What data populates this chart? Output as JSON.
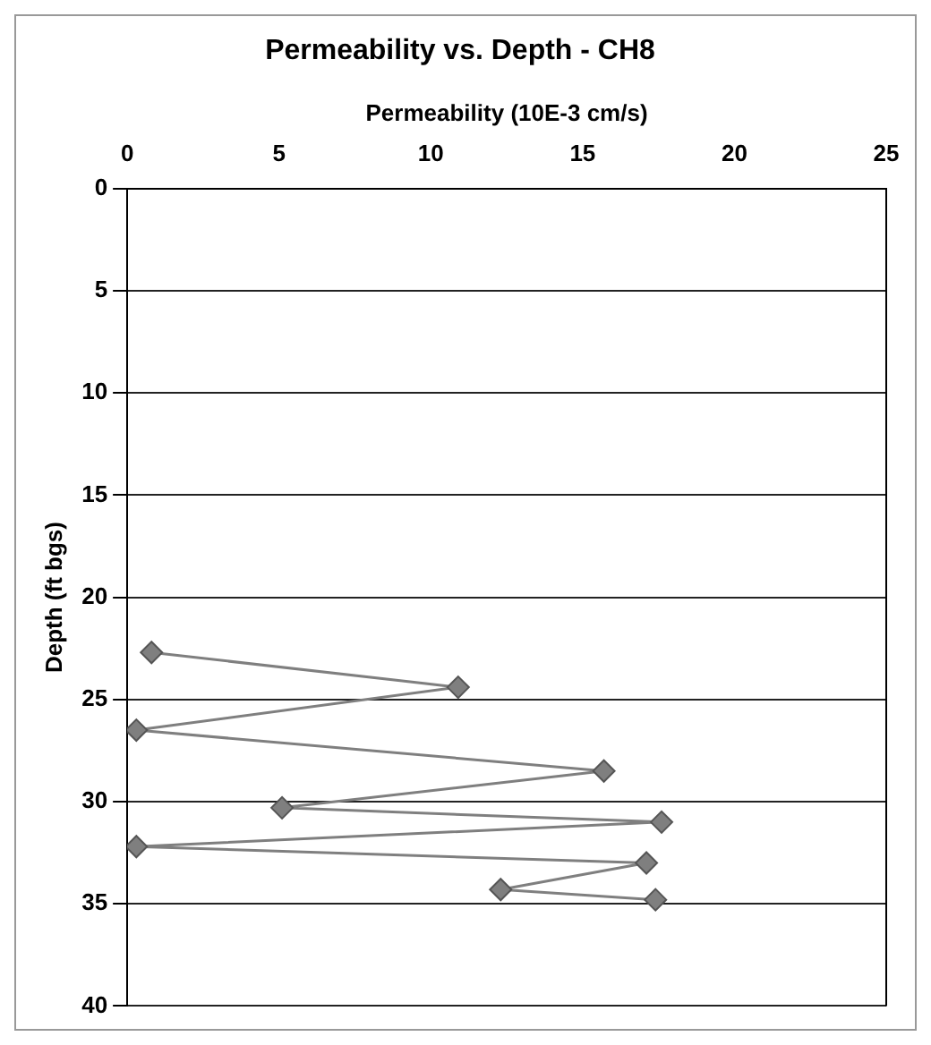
{
  "chart_data": {
    "type": "line",
    "title": "Permeability vs. Depth - CH8",
    "xlabel": "Permeability (10E-3 cm/s)",
    "ylabel": "Depth (ft bgs)",
    "xlim": [
      0,
      25
    ],
    "xticks": [
      0,
      5,
      10,
      15,
      20,
      25
    ],
    "ylim": [
      40,
      0
    ],
    "yticks": [
      0,
      5,
      10,
      15,
      20,
      25,
      30,
      35,
      40
    ],
    "grid": "y",
    "legend": false,
    "marker": "diamond",
    "line_style": "solid",
    "series": [
      {
        "color": "#7f7f7f",
        "x": [
          0.8,
          10.9,
          0.3,
          15.7,
          5.1,
          17.6,
          0.3,
          17.1,
          12.3,
          17.4
        ],
        "values": [
          22.7,
          24.4,
          26.5,
          28.5,
          30.3,
          31.0,
          32.2,
          33.0,
          34.3,
          34.8
        ]
      }
    ]
  }
}
